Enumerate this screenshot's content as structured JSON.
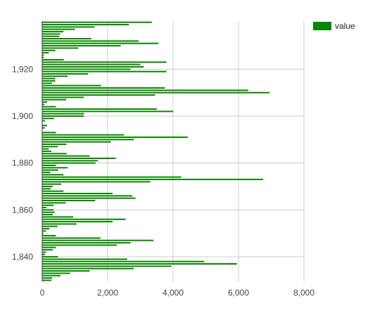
{
  "chart_data": {
    "type": "bar",
    "orientation": "horizontal",
    "title": "",
    "xlabel": "",
    "ylabel": "",
    "xlim": [
      0,
      8000
    ],
    "ylim": [
      1829.5,
      1940.5
    ],
    "x_ticks": [
      0,
      2000,
      4000,
      6000,
      8000
    ],
    "x_tick_labels": [
      "0",
      "2,000",
      "4,000",
      "6,000",
      "8,000"
    ],
    "y_ticks": [
      1840,
      1860,
      1880,
      1900,
      1920
    ],
    "y_tick_labels": [
      "1,840",
      "1,860",
      "1,880",
      "1,900",
      "1,920"
    ],
    "grid": true,
    "legend": {
      "position": "top-right",
      "entries": [
        "value"
      ]
    },
    "colors": {
      "bar": "#0a8700",
      "grid": "#cccccc",
      "axis": "#333333"
    },
    "series": [
      {
        "name": "value",
        "years": [
          1830,
          1831,
          1832,
          1833,
          1834,
          1835,
          1836,
          1837,
          1838,
          1839,
          1840,
          1841,
          1842,
          1843,
          1844,
          1845,
          1846,
          1847,
          1848,
          1849,
          1850,
          1851,
          1852,
          1853,
          1854,
          1855,
          1856,
          1857,
          1858,
          1859,
          1860,
          1861,
          1862,
          1863,
          1864,
          1865,
          1866,
          1867,
          1868,
          1869,
          1870,
          1871,
          1872,
          1873,
          1874,
          1875,
          1876,
          1877,
          1878,
          1879,
          1880,
          1881,
          1882,
          1883,
          1884,
          1885,
          1886,
          1887,
          1888,
          1889,
          1890,
          1891,
          1892,
          1893,
          1894,
          1895,
          1896,
          1897,
          1898,
          1899,
          1900,
          1901,
          1902,
          1903,
          1904,
          1905,
          1906,
          1907,
          1908,
          1909,
          1910,
          1911,
          1912,
          1913,
          1914,
          1915,
          1916,
          1917,
          1918,
          1919,
          1920,
          1921,
          1922,
          1923,
          1924,
          1925,
          1926,
          1927,
          1928,
          1929,
          1930,
          1931,
          1932,
          1933,
          1934,
          1935,
          1936,
          1937,
          1938,
          1939,
          1940
        ],
        "values": [
          280,
          310,
          560,
          850,
          1450,
          2800,
          3950,
          5950,
          4950,
          2600,
          480,
          90,
          120,
          320,
          420,
          2280,
          2700,
          3400,
          1780,
          420,
          40,
          120,
          220,
          470,
          1050,
          2150,
          2550,
          950,
          320,
          380,
          350,
          130,
          350,
          720,
          1620,
          2850,
          2750,
          2150,
          650,
          260,
          320,
          580,
          3300,
          6750,
          4250,
          650,
          250,
          490,
          780,
          420,
          1630,
          1700,
          2250,
          1450,
          750,
          280,
          200,
          480,
          740,
          2100,
          2800,
          4450,
          2500,
          420,
          0,
          80,
          150,
          0,
          80,
          360,
          1270,
          1280,
          4000,
          3500,
          420,
          70,
          150,
          730,
          1270,
          3450,
          6950,
          6300,
          3750,
          1800,
          300,
          400,
          400,
          780,
          1400,
          3800,
          2700,
          3100,
          3000,
          3800,
          660,
          50,
          50,
          200,
          400,
          1100,
          2400,
          3550,
          2950,
          1500,
          520,
          550,
          650,
          1000,
          1600,
          2650,
          3350
        ]
      }
    ]
  }
}
